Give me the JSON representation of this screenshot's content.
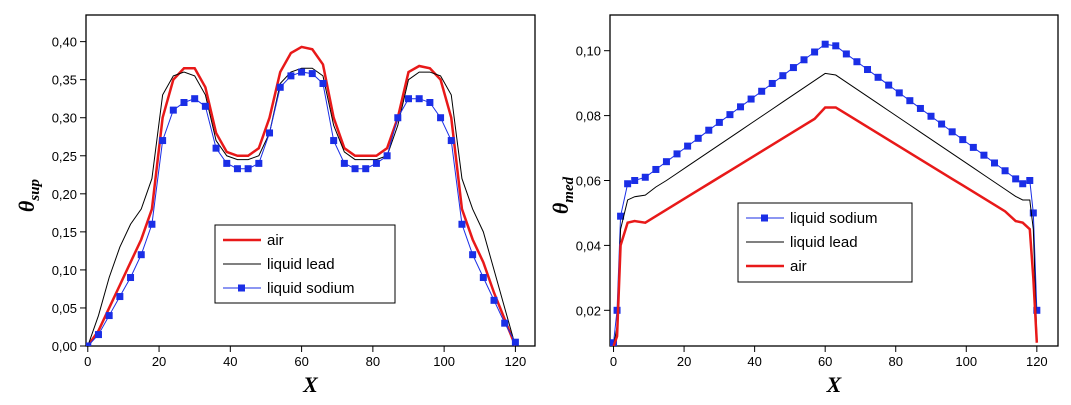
{
  "chart_data": [
    {
      "type": "line",
      "x_label": "X",
      "y_label": "θ",
      "y_label_sub": "sup",
      "legend_position": "center",
      "xlim": [
        -0.5,
        125.5
      ],
      "xticks": [
        0,
        20,
        40,
        60,
        80,
        100,
        120
      ],
      "ylim": [
        0,
        0.435
      ],
      "yticks": [
        {
          "value": 0,
          "label": "0,00"
        },
        {
          "value": 0.05,
          "label": "0,05"
        },
        {
          "value": 0.1,
          "label": "0,10"
        },
        {
          "value": 0.15,
          "label": "0,15"
        },
        {
          "value": 0.2,
          "label": "0,20"
        },
        {
          "value": 0.25,
          "label": "0,25"
        },
        {
          "value": 0.3,
          "label": "0,30"
        },
        {
          "value": 0.35,
          "label": "0,35"
        },
        {
          "value": 0.4,
          "label": "0,40"
        }
      ],
      "x": [
        0,
        3,
        6,
        9,
        12,
        15,
        18,
        21,
        24,
        27,
        30,
        33,
        36,
        39,
        42,
        45,
        48,
        51,
        54,
        57,
        60,
        63,
        66,
        69,
        72,
        75,
        78,
        81,
        84,
        87,
        90,
        93,
        96,
        99,
        102,
        105,
        108,
        111,
        114,
        117,
        120
      ],
      "series": [
        {
          "name": "air",
          "color": "#e81919",
          "linewidth": 2.5,
          "marker": "none",
          "values": [
            0,
            0.02,
            0.05,
            0.08,
            0.11,
            0.14,
            0.18,
            0.3,
            0.35,
            0.365,
            0.365,
            0.34,
            0.28,
            0.255,
            0.25,
            0.25,
            0.26,
            0.3,
            0.36,
            0.385,
            0.393,
            0.39,
            0.37,
            0.3,
            0.26,
            0.25,
            0.25,
            0.25,
            0.26,
            0.3,
            0.36,
            0.368,
            0.365,
            0.35,
            0.3,
            0.18,
            0.14,
            0.11,
            0.07,
            0.035,
            0
          ]
        },
        {
          "name": "liquid lead",
          "color": "#000000",
          "linewidth": 1,
          "marker": "none",
          "values": [
            0,
            0.04,
            0.09,
            0.13,
            0.16,
            0.18,
            0.22,
            0.33,
            0.355,
            0.36,
            0.355,
            0.33,
            0.27,
            0.25,
            0.245,
            0.245,
            0.25,
            0.28,
            0.345,
            0.36,
            0.365,
            0.365,
            0.355,
            0.29,
            0.255,
            0.245,
            0.245,
            0.245,
            0.25,
            0.29,
            0.35,
            0.36,
            0.36,
            0.355,
            0.33,
            0.22,
            0.18,
            0.15,
            0.1,
            0.05,
            0
          ]
        },
        {
          "name": "liquid sodium",
          "color": "#1a2ee6",
          "linewidth": 1,
          "marker": "square",
          "values": [
            0,
            0.015,
            0.04,
            0.065,
            0.09,
            0.12,
            0.16,
            0.27,
            0.31,
            0.32,
            0.325,
            0.315,
            0.26,
            0.24,
            0.233,
            0.233,
            0.24,
            0.28,
            0.34,
            0.355,
            0.36,
            0.358,
            0.345,
            0.27,
            0.24,
            0.233,
            0.233,
            0.24,
            0.25,
            0.3,
            0.325,
            0.325,
            0.32,
            0.3,
            0.27,
            0.16,
            0.12,
            0.09,
            0.06,
            0.03,
            0.005
          ]
        }
      ]
    },
    {
      "type": "line",
      "x_label": "X",
      "y_label": "θ",
      "y_label_sub": "med",
      "legend_position": "center left",
      "xlim": [
        -1,
        126
      ],
      "xticks": [
        0,
        20,
        40,
        60,
        80,
        100,
        120
      ],
      "ylim": [
        0.009,
        0.111
      ],
      "yticks": [
        {
          "value": 0.02,
          "label": "0,02"
        },
        {
          "value": 0.04,
          "label": "0,04"
        },
        {
          "value": 0.06,
          "label": "0,06"
        },
        {
          "value": 0.08,
          "label": "0,08"
        },
        {
          "value": 0.1,
          "label": "0,10"
        }
      ],
      "x": [
        0,
        1,
        2,
        4,
        6,
        9,
        12,
        15,
        18,
        21,
        24,
        27,
        30,
        33,
        36,
        39,
        42,
        45,
        48,
        51,
        54,
        57,
        60,
        63,
        66,
        69,
        72,
        75,
        78,
        81,
        84,
        87,
        90,
        93,
        96,
        99,
        102,
        105,
        108,
        111,
        114,
        116,
        118,
        119,
        120
      ],
      "series": [
        {
          "name": "liquid sodium",
          "color": "#1a2ee6",
          "linewidth": 1,
          "marker": "square",
          "values": [
            0.01,
            0.02,
            0.049,
            0.059,
            0.06,
            0.061,
            0.0634,
            0.0658,
            0.0682,
            0.0706,
            0.073,
            0.0755,
            0.0779,
            0.0803,
            0.0827,
            0.0851,
            0.0875,
            0.0899,
            0.0923,
            0.0948,
            0.0972,
            0.0996,
            0.102,
            0.1015,
            0.099,
            0.0966,
            0.0942,
            0.0918,
            0.0894,
            0.087,
            0.0846,
            0.0822,
            0.0798,
            0.0774,
            0.075,
            0.0726,
            0.0702,
            0.0678,
            0.0654,
            0.063,
            0.0605,
            0.059,
            0.06,
            0.05,
            0.02
          ]
        },
        {
          "name": "liquid lead",
          "color": "#000000",
          "linewidth": 1,
          "marker": "none",
          "values": [
            0.009,
            0.015,
            0.045,
            0.054,
            0.055,
            0.0555,
            0.058,
            0.06,
            0.0622,
            0.0644,
            0.0666,
            0.0688,
            0.071,
            0.0732,
            0.0754,
            0.0776,
            0.0798,
            0.082,
            0.0842,
            0.0864,
            0.0886,
            0.0908,
            0.093,
            0.0925,
            0.0903,
            0.0881,
            0.0859,
            0.0837,
            0.0815,
            0.0793,
            0.0771,
            0.0749,
            0.0727,
            0.0705,
            0.0683,
            0.0661,
            0.0639,
            0.0617,
            0.0595,
            0.0573,
            0.0551,
            0.054,
            0.054,
            0.045,
            0.012
          ]
        },
        {
          "name": "air",
          "color": "#e81919",
          "linewidth": 2.5,
          "marker": "none",
          "values": [
            0.009,
            0.012,
            0.04,
            0.047,
            0.0475,
            0.047,
            0.049,
            0.051,
            0.053,
            0.055,
            0.057,
            0.059,
            0.061,
            0.063,
            0.065,
            0.067,
            0.069,
            0.071,
            0.073,
            0.075,
            0.077,
            0.079,
            0.0825,
            0.0825,
            0.0805,
            0.0785,
            0.0765,
            0.0745,
            0.0725,
            0.0705,
            0.0685,
            0.0665,
            0.0645,
            0.0625,
            0.0605,
            0.0585,
            0.0565,
            0.0545,
            0.0525,
            0.0505,
            0.0475,
            0.047,
            0.045,
            0.03,
            0.01
          ]
        }
      ]
    }
  ]
}
